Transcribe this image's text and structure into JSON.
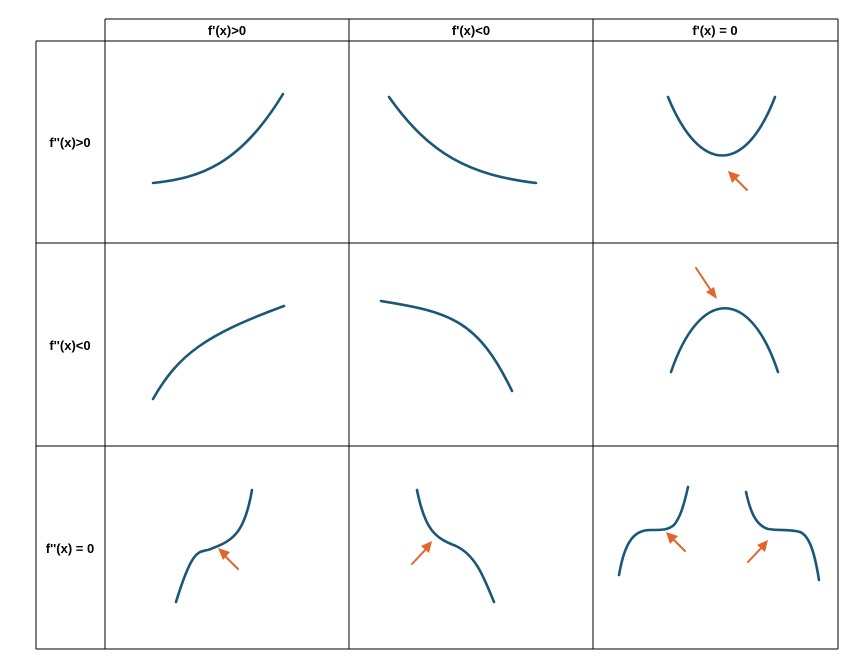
{
  "column_headers": [
    "f'(x)>0",
    "f'(x)<0",
    "f'(x) = 0"
  ],
  "row_headers": [
    "f''(x)>0",
    "f''(x)<0",
    "f''(x) = 0"
  ],
  "colors": {
    "curve": "#1b5878",
    "arrow": "#e0662c",
    "grid": "#000000"
  },
  "cells": [
    {
      "row": 0,
      "col": 0,
      "shape": "increasing-concave-up",
      "marker": "none"
    },
    {
      "row": 0,
      "col": 1,
      "shape": "decreasing-concave-up",
      "marker": "none"
    },
    {
      "row": 0,
      "col": 2,
      "shape": "local-minimum",
      "marker": "arrow-at-minimum"
    },
    {
      "row": 1,
      "col": 0,
      "shape": "increasing-concave-down",
      "marker": "none"
    },
    {
      "row": 1,
      "col": 1,
      "shape": "decreasing-concave-down",
      "marker": "none"
    },
    {
      "row": 1,
      "col": 2,
      "shape": "local-maximum",
      "marker": "arrow-at-maximum"
    },
    {
      "row": 2,
      "col": 0,
      "shape": "increasing-inflection",
      "marker": "arrow-at-inflection"
    },
    {
      "row": 2,
      "col": 1,
      "shape": "decreasing-inflection",
      "marker": "arrow-at-inflection"
    },
    {
      "row": 2,
      "col": 2,
      "shape": "stationary-inflections",
      "marker": "arrows-at-flat-inflections"
    }
  ]
}
